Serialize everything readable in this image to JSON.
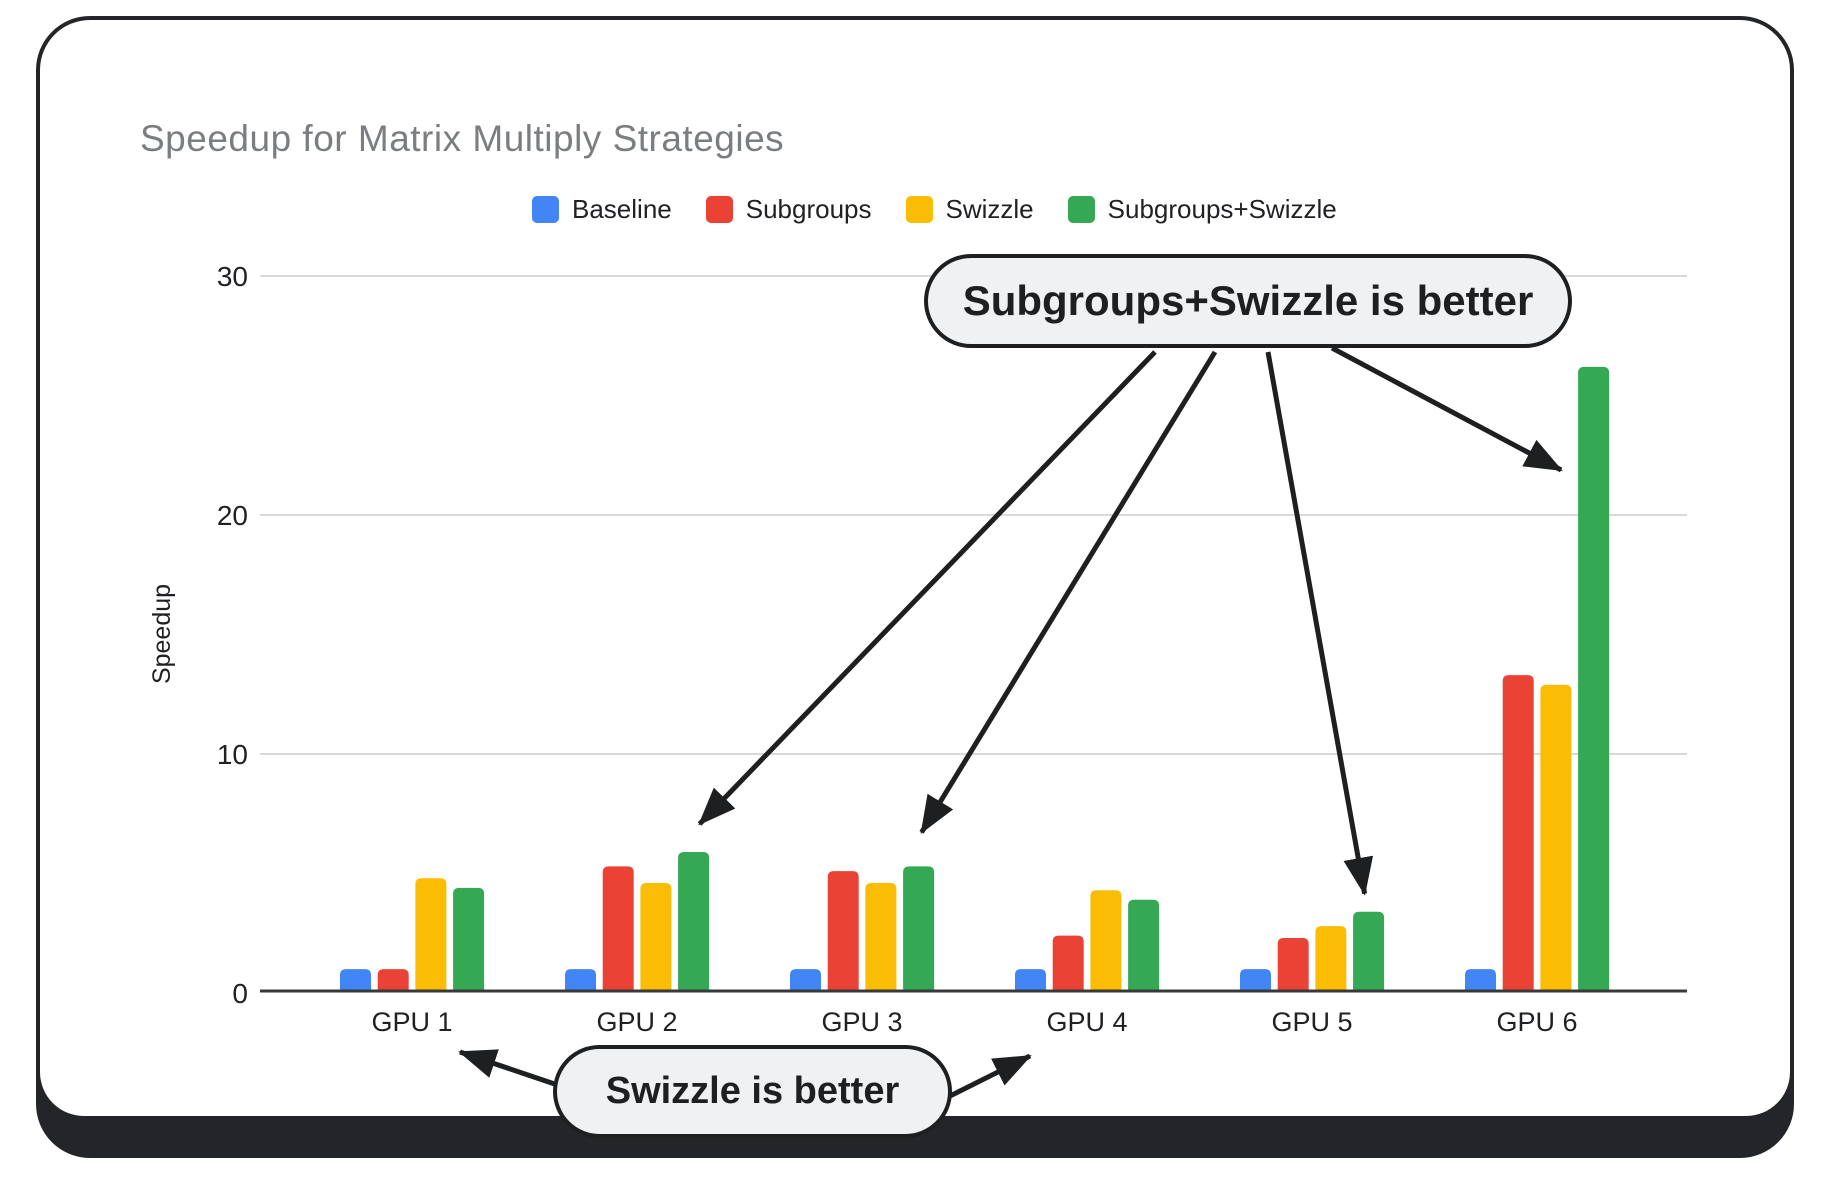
{
  "chart_data": {
    "type": "bar",
    "title": "Speedup for Matrix Multiply Strategies",
    "ylabel": "Speedup",
    "xlabel": "",
    "ylim": [
      0,
      30
    ],
    "yticks": [
      "0",
      "10",
      "20",
      "30"
    ],
    "grid": "horizontal",
    "legend_position": "top",
    "categories": [
      "GPU 1",
      "GPU 2",
      "GPU 3",
      "GPU 4",
      "GPU 5",
      "GPU 6"
    ],
    "series": [
      {
        "name": "Baseline",
        "color": "#4285F4",
        "values": [
          1.0,
          1.0,
          1.0,
          1.0,
          1.0,
          1.0
        ]
      },
      {
        "name": "Subgroups",
        "color": "#EA4335",
        "values": [
          1.0,
          5.3,
          5.1,
          2.4,
          2.3,
          13.3
        ]
      },
      {
        "name": "Swizzle",
        "color": "#FBBC04",
        "values": [
          4.8,
          4.6,
          4.6,
          4.3,
          2.8,
          12.9
        ]
      },
      {
        "name": "Subgroups+Swizzle",
        "color": "#34A853",
        "values": [
          4.4,
          5.9,
          5.3,
          3.9,
          3.4,
          26.2
        ]
      }
    ]
  },
  "annotations": [
    {
      "text": "Subgroups+Swizzle is better",
      "targets": [
        "GPU 2 Subgroups+Swizzle bar",
        "GPU 3 Subgroups+Swizzle bar",
        "GPU 5 Subgroups+Swizzle bar",
        "GPU 6 Subgroups+Swizzle bar"
      ]
    },
    {
      "text": "Swizzle is better",
      "targets": [
        "GPU 1",
        "GPU 4"
      ]
    }
  ],
  "colors": {
    "title_text": "#7b7e81",
    "axis_text": "#202124",
    "gridline": "#d9d9d9",
    "baseline_axis": "#37393b",
    "card_frame": "#232528",
    "callout_fill": "#f0f1f3",
    "callout_stroke": "#1d1f21"
  }
}
